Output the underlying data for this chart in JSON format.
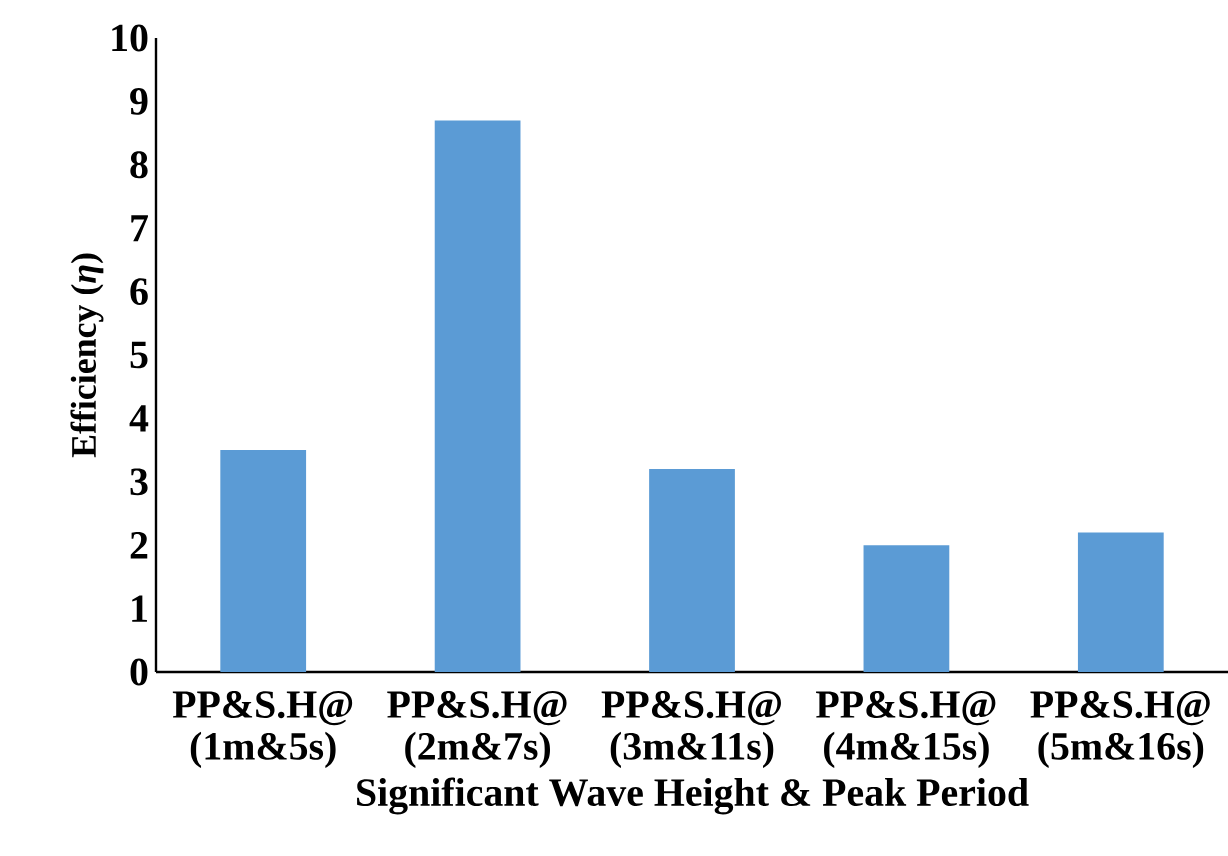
{
  "chart_data": {
    "type": "bar",
    "xlabel": "Significant Wave Height & Peak Period",
    "ylabel": "Efficiency (*η*)",
    "categories": [
      "PP&S.H@ (1m&5s)",
      "PP&S.H@ (2m&7s)",
      "PP&S.H@ (3m&11s)",
      "PP&S.H@ (4m&15s)",
      "PP&S.H@ (5m&16s)"
    ],
    "values": [
      3.5,
      8.7,
      3.2,
      2.0,
      2.2
    ],
    "color": "#5b9bd5",
    "ylim": [
      0,
      10
    ],
    "yticks": [
      0,
      1,
      2,
      3,
      4,
      5,
      6,
      7,
      8,
      9,
      10
    ]
  }
}
